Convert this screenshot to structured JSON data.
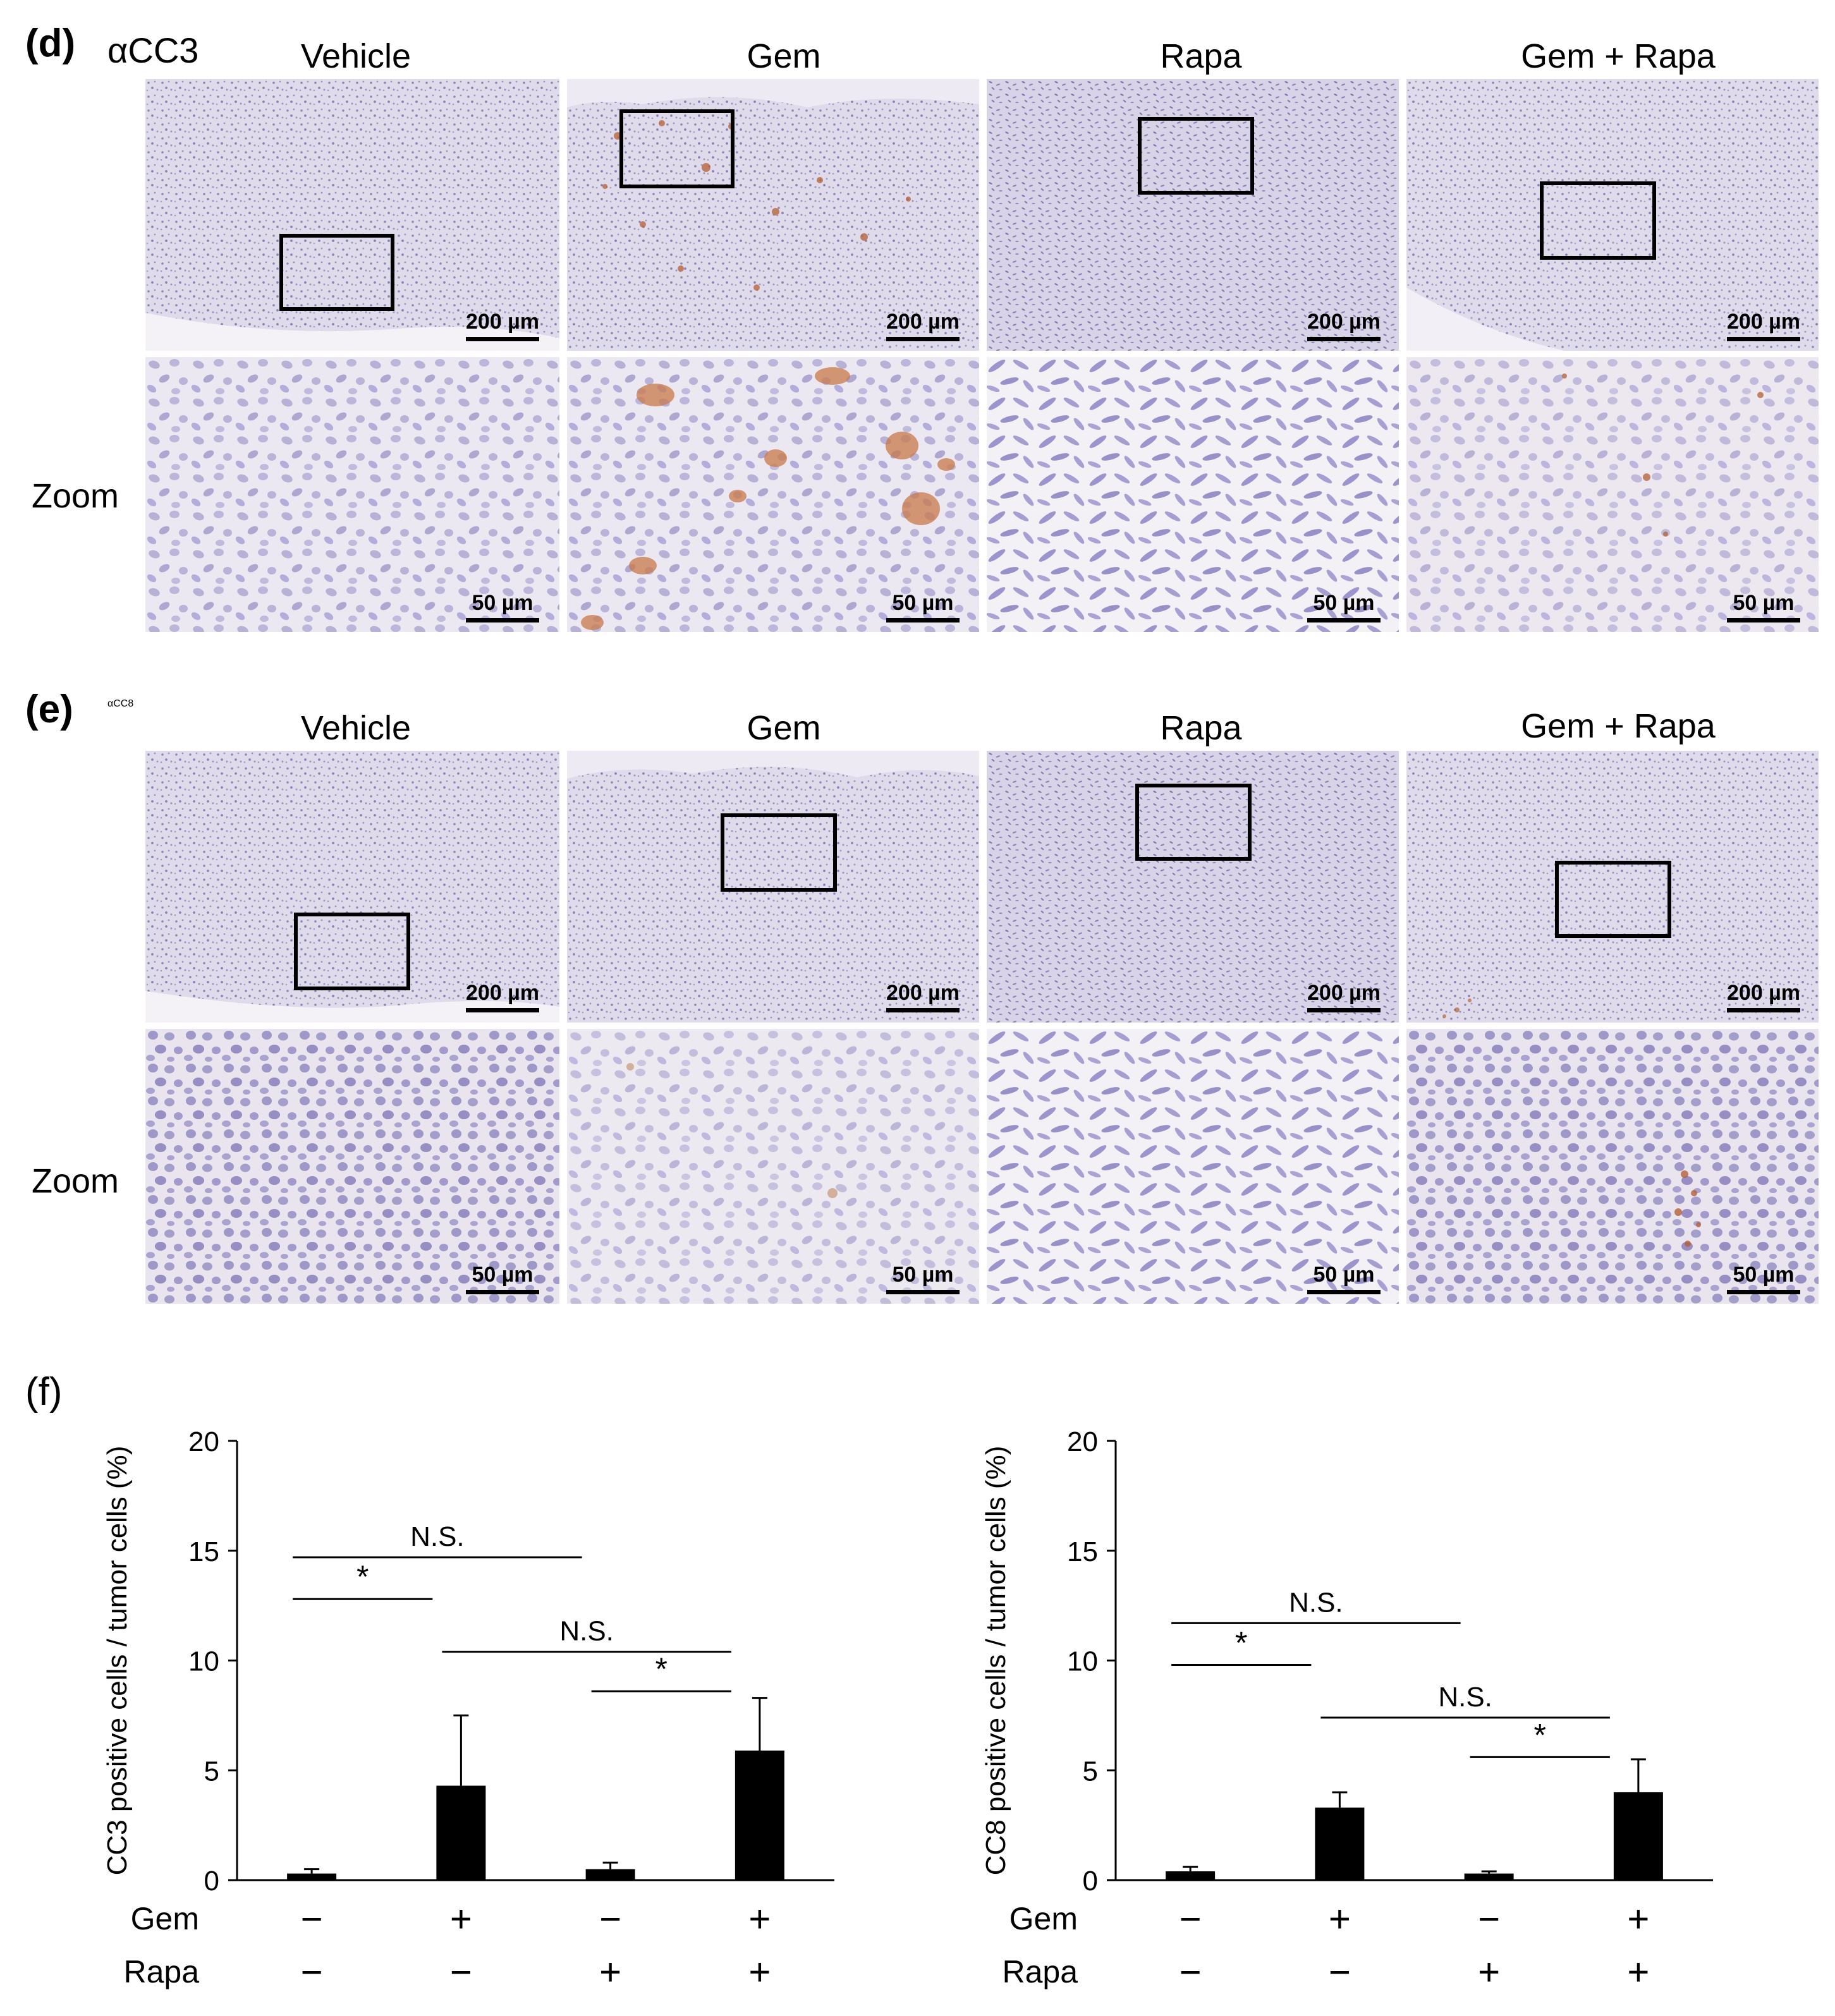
{
  "figure": {
    "sections": [
      {
        "label": "(d)",
        "marker": "αCC3",
        "columns": [
          "Vehicle",
          "Gem",
          "Rapa",
          "Gem + Rapa"
        ],
        "row_label": "Zoom",
        "scale_low": "200 µm",
        "scale_high": "50 µm"
      },
      {
        "label": "(e)",
        "marker": "αCC8",
        "columns": [
          "Vehicle",
          "Gem",
          "Rapa",
          "Gem + Rapa"
        ],
        "row_label": "Zoom",
        "scale_low": "200 µm",
        "scale_high": "50 µm"
      }
    ],
    "panel_f_label": "(f)"
  },
  "chart_data": [
    {
      "type": "bar",
      "categories": [
        "1",
        "2",
        "3",
        "4"
      ],
      "values": [
        0.3,
        4.3,
        0.5,
        5.9
      ],
      "errors": [
        0.2,
        3.2,
        0.3,
        2.4
      ],
      "ylabel": "CC3 positive cells / tumor cells (%)",
      "ylim": [
        0,
        20
      ],
      "yticks": [
        "0",
        "5",
        "10",
        "15",
        "20"
      ],
      "bar_color": "#000000",
      "factor_rows": [
        {
          "name": "Gem",
          "signs": [
            "−",
            "+",
            "−",
            "+"
          ]
        },
        {
          "name": "Rapa",
          "signs": [
            "−",
            "−",
            "+",
            "+"
          ]
        }
      ],
      "annotations": [
        {
          "text": "*",
          "from": 1,
          "to": 2,
          "y": 12.8
        },
        {
          "text": "N.S.",
          "from": 1,
          "to": 3,
          "y": 14.7
        },
        {
          "text": "*",
          "from": 3,
          "to": 4,
          "y": 8.6
        },
        {
          "text": "N.S.",
          "from": 2,
          "to": 4,
          "y": 10.4
        }
      ]
    },
    {
      "type": "bar",
      "categories": [
        "1",
        "2",
        "3",
        "4"
      ],
      "values": [
        0.4,
        3.3,
        0.3,
        4.0
      ],
      "errors": [
        0.2,
        0.7,
        0.1,
        1.5
      ],
      "ylabel": "CC8 positive cells / tumor cells (%)",
      "ylim": [
        0,
        20
      ],
      "yticks": [
        "0",
        "5",
        "10",
        "15",
        "20"
      ],
      "bar_color": "#000000",
      "factor_rows": [
        {
          "name": "Gem",
          "signs": [
            "−",
            "+",
            "−",
            "+"
          ]
        },
        {
          "name": "Rapa",
          "signs": [
            "−",
            "−",
            "+",
            "+"
          ]
        }
      ],
      "annotations": [
        {
          "text": "*",
          "from": 1,
          "to": 2,
          "y": 9.8
        },
        {
          "text": "N.S.",
          "from": 1,
          "to": 3,
          "y": 11.7
        },
        {
          "text": "*",
          "from": 3,
          "to": 4,
          "y": 5.6
        },
        {
          "text": "N.S.",
          "from": 2,
          "to": 4,
          "y": 7.4
        }
      ]
    }
  ]
}
